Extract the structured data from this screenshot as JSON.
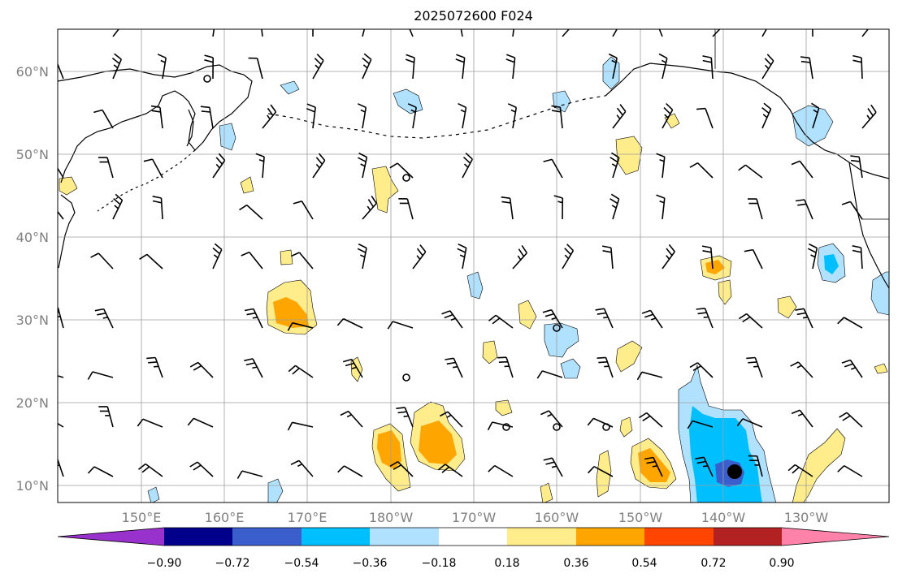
{
  "title": "2025072600 F024",
  "map": {
    "lat_labels": [
      "60°N",
      "50°N",
      "40°N",
      "30°N",
      "20°N",
      "10°N"
    ],
    "lon_labels": [
      "150°E",
      "160°E",
      "170°E",
      "180°W",
      "170°W",
      "160°W",
      "150°W",
      "140°W",
      "130°W"
    ],
    "label_color": "#808080",
    "grid_color": "#9e9e9e"
  },
  "colorbar": {
    "ticks": [
      "−0.90",
      "−0.72",
      "−0.54",
      "−0.36",
      "−0.18",
      "0.18",
      "0.36",
      "0.54",
      "0.72",
      "0.90"
    ],
    "colors": [
      "#9932CC",
      "#00008B",
      "#3A5FCD",
      "#00BFFF",
      "#B0E2FF",
      "#FFFFFF",
      "#FFEC8B",
      "#FFA500",
      "#FF4500",
      "#B22222",
      "#FF82AB"
    ]
  },
  "legend_colors": {
    "warm_light": "#FFEC8B",
    "warm_mid": "#FFA500",
    "cool_light": "#B0E2FF",
    "cool_mid": "#00BFFF",
    "cool_dark": "#3A5FCD",
    "cool_darkest": "#00008B"
  }
}
